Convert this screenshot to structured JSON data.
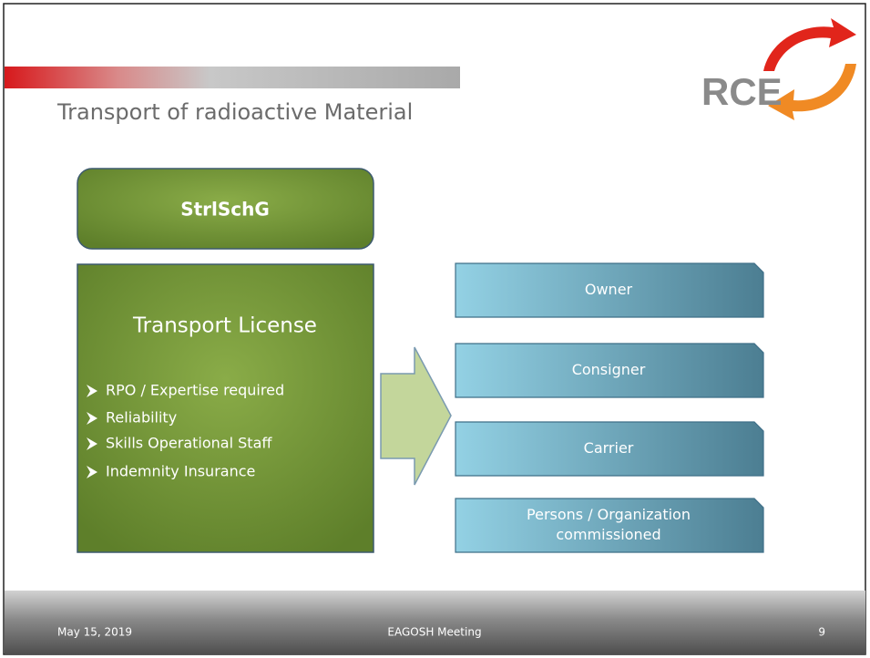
{
  "header": {
    "title": "Transport of radioactive Material",
    "logo": "RCE"
  },
  "top_box": {
    "label": "StrlSchG"
  },
  "main_box": {
    "title": "Transport License",
    "bullets": [
      "RPO / Expertise required",
      "Reliability",
      "Skills Operational Staff",
      "Indemnity Insurance"
    ]
  },
  "roles": [
    {
      "lines": [
        "Owner"
      ]
    },
    {
      "lines": [
        "Consigner"
      ]
    },
    {
      "lines": [
        "Carrier"
      ]
    },
    {
      "lines": [
        "Persons / Organization",
        "commissioned"
      ]
    }
  ],
  "footer": {
    "date": "May 15, 2019",
    "event": "EAGOSH Meeting",
    "page": "9"
  }
}
